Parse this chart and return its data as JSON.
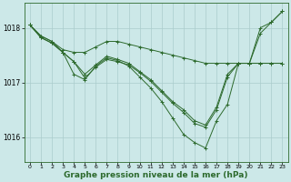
{
  "bg_color": "#cce8e8",
  "grid_color": "#aacccc",
  "line_color": "#2d6a2d",
  "marker_color": "#2d6a2d",
  "xlabel": "Graphe pression niveau de la mer (hPa)",
  "xlabel_fontsize": 6.5,
  "xlim": [
    -0.5,
    23.5
  ],
  "ylim": [
    1015.55,
    1018.45
  ],
  "yticks": [
    1016,
    1017,
    1018
  ],
  "xticks": [
    0,
    1,
    2,
    3,
    4,
    5,
    6,
    7,
    8,
    9,
    10,
    11,
    12,
    13,
    14,
    15,
    16,
    17,
    18,
    19,
    20,
    21,
    22,
    23
  ],
  "series": [
    {
      "x": [
        0,
        1,
        2,
        3,
        4,
        5,
        6,
        7,
        8,
        9,
        10,
        11,
        12,
        13,
        14,
        15,
        16,
        17,
        18,
        19,
        20,
        21,
        22,
        23
      ],
      "y": [
        1018.05,
        1017.85,
        1017.75,
        1017.6,
        1017.55,
        1017.55,
        1017.65,
        1017.75,
        1017.75,
        1017.7,
        1017.65,
        1017.6,
        1017.55,
        1017.5,
        1017.45,
        1017.4,
        1017.35,
        1017.35,
        1017.35,
        1017.35,
        1017.35,
        1018.0,
        1018.1,
        1018.3
      ]
    },
    {
      "x": [
        0,
        1,
        2,
        3,
        4,
        5,
        6,
        7,
        8,
        9,
        10,
        11,
        12,
        13,
        14,
        15,
        16,
        17,
        18,
        19,
        20,
        21,
        22,
        23
      ],
      "y": [
        1018.05,
        1017.85,
        1017.75,
        1017.55,
        1017.15,
        1017.05,
        1017.3,
        1017.45,
        1017.4,
        1017.3,
        1017.1,
        1016.9,
        1016.65,
        1016.35,
        1016.05,
        1015.9,
        1015.8,
        1016.3,
        1016.6,
        1017.35,
        1017.35,
        1017.9,
        1018.1,
        1018.3
      ]
    },
    {
      "x": [
        0,
        1,
        2,
        3,
        4,
        5,
        6,
        7,
        8,
        9,
        10,
        11,
        12,
        13,
        14,
        15,
        16,
        17,
        18,
        19,
        20,
        21,
        22,
        23
      ],
      "y": [
        1018.05,
        1017.82,
        1017.72,
        1017.55,
        1017.38,
        1017.15,
        1017.32,
        1017.48,
        1017.42,
        1017.35,
        1017.2,
        1017.05,
        1016.85,
        1016.65,
        1016.5,
        1016.3,
        1016.22,
        1016.55,
        1017.15,
        1017.35,
        1017.35,
        1017.35,
        1017.35,
        1017.35
      ]
    },
    {
      "x": [
        0,
        1,
        2,
        3,
        4,
        5,
        6,
        7,
        8,
        9,
        10,
        11,
        12,
        13,
        14,
        15,
        16,
        17,
        18,
        19,
        20,
        21,
        22,
        23
      ],
      "y": [
        1018.05,
        1017.82,
        1017.72,
        1017.55,
        1017.38,
        1017.08,
        1017.28,
        1017.42,
        1017.38,
        1017.32,
        1017.18,
        1017.02,
        1016.82,
        1016.62,
        1016.45,
        1016.25,
        1016.18,
        1016.5,
        1017.1,
        1017.35,
        1017.35,
        1017.35,
        1017.35,
        1017.35
      ]
    }
  ]
}
